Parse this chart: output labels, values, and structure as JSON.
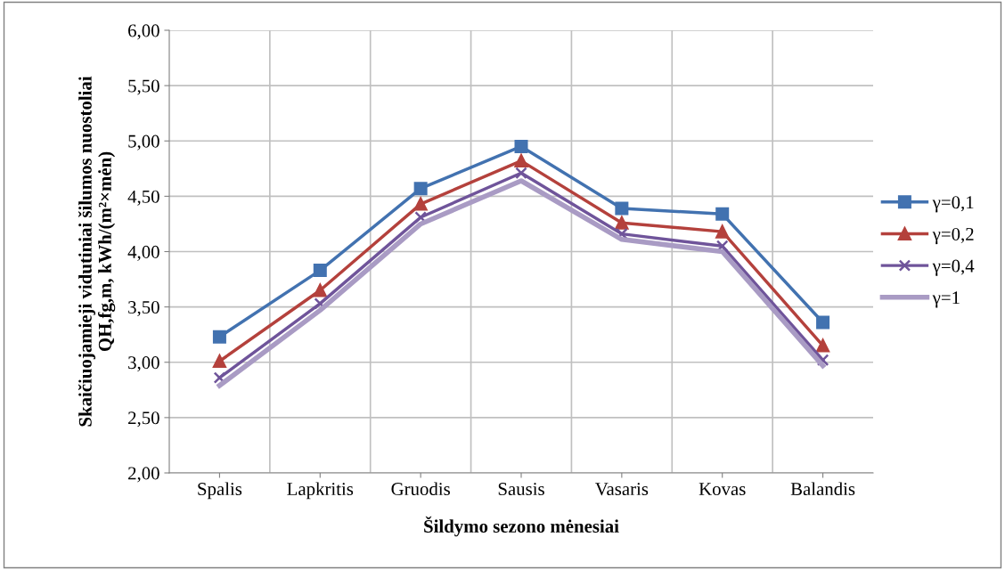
{
  "chart_data": {
    "type": "line",
    "xlabel": "Šildymo sezono mėnesiai",
    "ylabel": "Skaičiuojamieji vidutiniai šilumos nuostoliai\nQH,fg,m, kWh/(m²×mėn)",
    "categories": [
      "Spalis",
      "Lapkritis",
      "Gruodis",
      "Sausis",
      "Vasaris",
      "Kovas",
      "Balandis"
    ],
    "series": [
      {
        "name": "γ=0,1",
        "color": "#4272b0",
        "marker": "square",
        "values": [
          3.23,
          3.83,
          4.57,
          4.95,
          4.39,
          4.34,
          3.36
        ]
      },
      {
        "name": "γ=0,2",
        "color": "#b4413c",
        "marker": "triangle",
        "values": [
          3.01,
          3.65,
          4.43,
          4.82,
          4.26,
          4.18,
          3.15
        ]
      },
      {
        "name": "γ=0,4",
        "color": "#6f549a",
        "marker": "cross",
        "values": [
          2.86,
          3.53,
          4.31,
          4.71,
          4.16,
          4.05,
          3.02
        ]
      },
      {
        "name": "γ=1",
        "color": "#a99bc4",
        "marker": "none",
        "values": [
          2.79,
          3.47,
          4.25,
          4.64,
          4.11,
          4.0,
          2.97
        ]
      }
    ],
    "ylim": [
      2,
      6
    ],
    "yticks": [
      {
        "value": 2,
        "label": "2,00"
      },
      {
        "value": 2.5,
        "label": "2,50"
      },
      {
        "value": 3,
        "label": "3,00"
      },
      {
        "value": 3.5,
        "label": "3,50"
      },
      {
        "value": 4,
        "label": "4,00"
      },
      {
        "value": 4.5,
        "label": "4,50"
      },
      {
        "value": 5,
        "label": "5,00"
      },
      {
        "value": 5.5,
        "label": "5,50"
      },
      {
        "value": 6,
        "label": "6,00"
      }
    ],
    "grid": true,
    "legend": "right",
    "line_style": "solid"
  }
}
